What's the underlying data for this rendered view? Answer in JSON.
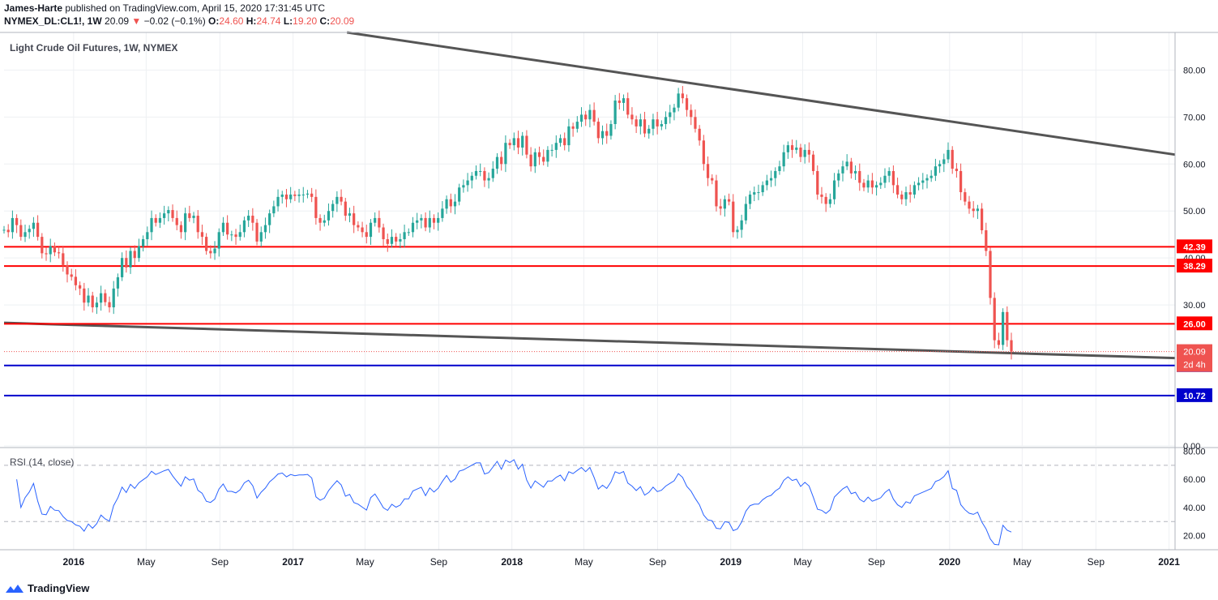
{
  "header": {
    "author": "James-Harte",
    "published": " published on TradingView.com, April 15, 2020 17:31:45 UTC",
    "symbol": "NYMEX_DL:CL1!, 1W",
    "last": "20.09",
    "arrow": "▼",
    "change": "−0.02 (−0.1%)",
    "o_label": "O:",
    "o": "24.60",
    "h_label": "H:",
    "h": "24.74",
    "l_label": "L:",
    "l": "19.20",
    "c_label": "C:",
    "c": "20.09"
  },
  "footer": {
    "brand": "TradingView",
    "icon": "tradingview-logo-icon"
  },
  "colors": {
    "up": "#26a69a",
    "down": "#ef5350",
    "red_level": "#ff0000",
    "blue_level": "#0000cc",
    "trendline": "#555555",
    "rsi": "#2962ff",
    "grid": "#eef0f3"
  },
  "chart_data": [
    {
      "type": "candlestick",
      "title": "Light Crude Oil Futures, 1W, NYMEX",
      "ylim": [
        0,
        88
      ],
      "y_ticks": [
        "80.00",
        "70.00",
        "60.00",
        "50.00",
        "40.00",
        "30.00",
        "0.00"
      ],
      "x_ticks": [
        "2016",
        "May",
        "Sep",
        "2017",
        "May",
        "Sep",
        "2018",
        "May",
        "Sep",
        "2019",
        "May",
        "Sep",
        "2020",
        "May",
        "Sep",
        "2021"
      ],
      "x_tick_dates": [
        "2016-01-01",
        "2016-05-01",
        "2016-09-01",
        "2017-01-01",
        "2017-05-01",
        "2017-09-01",
        "2018-01-01",
        "2018-05-01",
        "2018-09-01",
        "2019-01-01",
        "2019-05-01",
        "2019-09-01",
        "2020-01-01",
        "2020-05-01",
        "2020-09-01",
        "2021-01-01"
      ],
      "x_range": [
        "2015-09-07",
        "2021-01-11"
      ],
      "grid": true,
      "candle_dates": [
        "2015-09-07",
        "2020-04-13"
      ],
      "closes": [
        46.0,
        45.5,
        48.5,
        47.0,
        44.5,
        45.5,
        46.2,
        47.5,
        44.5,
        41.0,
        40.8,
        42.5,
        41.2,
        41.0,
        38.5,
        36.5,
        36.0,
        34.2,
        33.5,
        30.5,
        32.0,
        29.5,
        30.5,
        32.5,
        30.6,
        29.5,
        33.5,
        35.9,
        40.0,
        38.0,
        41.5,
        40.0,
        42.5,
        44.0,
        45.5,
        48.5,
        47.5,
        48.5,
        49.5,
        50.2,
        48.5,
        47.0,
        45.5,
        49.5,
        48.5,
        49.0,
        45.5,
        44.5,
        41.5,
        41.0,
        42.0,
        45.5,
        47.5,
        45.0,
        45.0,
        44.5,
        45.5,
        48.0,
        49.0,
        47.5,
        43.5,
        45.5,
        47.0,
        49.5,
        51.0,
        53.0,
        53.5,
        52.5,
        53.5,
        53.2,
        53.5,
        53.5,
        53.7,
        53.0,
        48.5,
        47.5,
        48.0,
        50.0,
        51.5,
        53.0,
        52.0,
        49.0,
        49.5,
        47.0,
        46.5,
        45.5,
        44.5,
        47.5,
        48.5,
        46.5,
        44.0,
        43.0,
        44.5,
        43.5,
        44.0,
        45.5,
        45.5,
        47.5,
        48.0,
        48.5,
        46.5,
        48.5,
        47.5,
        48.5,
        50.5,
        52.5,
        51.0,
        52.0,
        55.0,
        55.5,
        56.5,
        57.5,
        58.5,
        58.5,
        56.5,
        57.0,
        59.0,
        61.5,
        60.0,
        64.5,
        64.0,
        65.5,
        63.5,
        66.0,
        62.0,
        59.5,
        62.5,
        61.5,
        60.5,
        63.0,
        63.0,
        64.5,
        65.5,
        64.0,
        68.0,
        67.5,
        69.0,
        70.5,
        69.5,
        71.5,
        69.0,
        65.5,
        67.0,
        66.0,
        68.5,
        73.5,
        73.0,
        74.0,
        70.5,
        69.5,
        68.0,
        69.5,
        66.5,
        67.5,
        69.5,
        68.0,
        68.5,
        70.0,
        71.0,
        72.0,
        75.0,
        74.0,
        71.5,
        70.0,
        67.5,
        65.0,
        60.0,
        57.0,
        56.5,
        51.0,
        50.5,
        52.5,
        52.0,
        45.5,
        46.0,
        48.0,
        51.5,
        53.5,
        54.0,
        54.0,
        55.5,
        56.5,
        57.0,
        58.5,
        59.5,
        62.5,
        64.0,
        63.0,
        63.5,
        61.5,
        63.0,
        62.0,
        58.5,
        53.5,
        53.0,
        51.5,
        52.5,
        56.5,
        58.0,
        59.5,
        60.5,
        58.0,
        58.5,
        56.0,
        55.0,
        56.5,
        55.0,
        55.5,
        56.0,
        57.5,
        58.5,
        55.5,
        53.5,
        52.5,
        54.0,
        53.5,
        55.5,
        56.0,
        56.5,
        57.0,
        57.5,
        59.5,
        60.0,
        61.0,
        63.0,
        59.0,
        58.5,
        54.0,
        52.0,
        50.5,
        50.0,
        50.5,
        45.9,
        41.5,
        31.5,
        22.5,
        21.5,
        28.5,
        22.5,
        20.1
      ],
      "levels": [
        {
          "value": 42.39,
          "label": "42.39",
          "color": "#ff0000"
        },
        {
          "value": 38.29,
          "label": "38.29",
          "color": "#ff0000"
        },
        {
          "value": 26.0,
          "label": "26.00",
          "color": "#ff0000"
        },
        {
          "value": 17.12,
          "label": "17.12",
          "color": "#0000cc"
        },
        {
          "value": 10.72,
          "label": "10.72",
          "color": "#0000cc"
        }
      ],
      "last_price": {
        "value": 20.09,
        "label": "20.09",
        "countdown": "2d 4h"
      },
      "trendlines": [
        {
          "from": [
            "2017-04-01",
            88.0
          ],
          "to": [
            "2021-01-11",
            62.0
          ]
        },
        {
          "from": [
            "2015-09-07",
            26.2
          ],
          "to": [
            "2021-01-11",
            18.7
          ]
        }
      ]
    },
    {
      "type": "line",
      "title": "RSI (14, close)",
      "ylim": [
        10,
        82
      ],
      "y_ticks": [
        "80.00",
        "60.00",
        "40.00",
        "20.00"
      ],
      "bands": [
        70,
        30
      ],
      "values": []
    }
  ]
}
